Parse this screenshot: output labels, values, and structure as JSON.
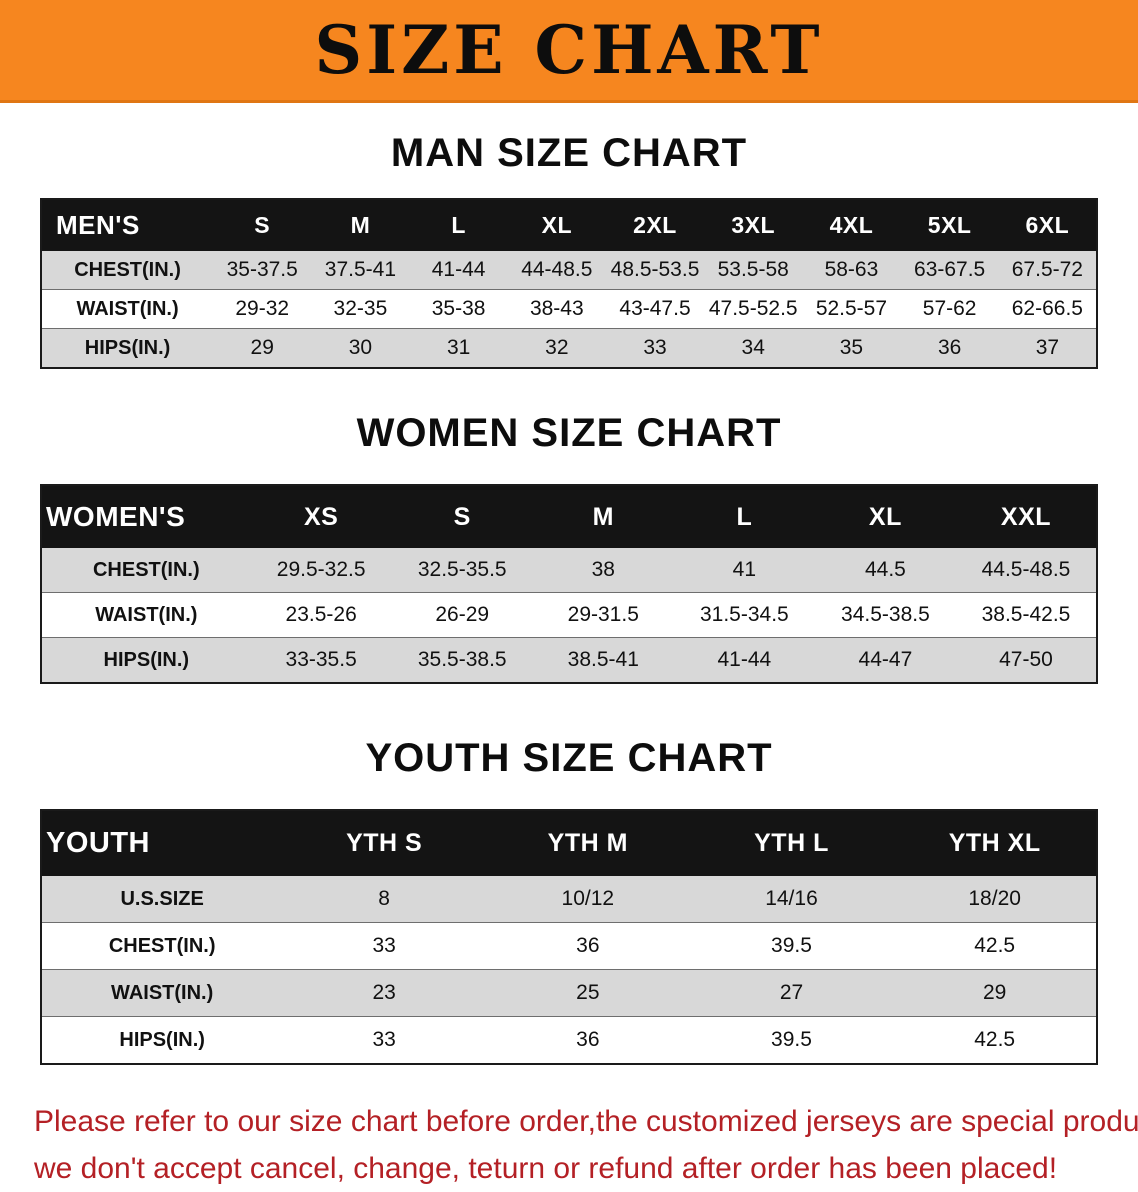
{
  "banner": {
    "title": "SIZE CHART"
  },
  "sections": [
    {
      "heading": "MAN SIZE CHART",
      "table": {
        "header": [
          "MEN'S",
          "S",
          "M",
          "L",
          "XL",
          "2XL",
          "3XL",
          "4XL",
          "5XL",
          "6XL"
        ],
        "rows": [
          [
            "CHEST(IN.)",
            "35-37.5",
            "37.5-41",
            "41-44",
            "44-48.5",
            "48.5-53.5",
            "53.5-58",
            "58-63",
            "63-67.5",
            "67.5-72"
          ],
          [
            "WAIST(IN.)",
            "29-32",
            "32-35",
            "35-38",
            "38-43",
            "43-47.5",
            "47.5-52.5",
            "52.5-57",
            "57-62",
            "62-66.5"
          ],
          [
            "HIPS(IN.)",
            "29",
            "30",
            "31",
            "32",
            "33",
            "34",
            "35",
            "36",
            "37"
          ]
        ]
      }
    },
    {
      "heading": "WOMEN SIZE CHART",
      "table": {
        "header": [
          "WOMEN'S",
          "XS",
          "S",
          "M",
          "L",
          "XL",
          "XXL"
        ],
        "rows": [
          [
            "CHEST(IN.)",
            "29.5-32.5",
            "32.5-35.5",
            "38",
            "41",
            "44.5",
            "44.5-48.5"
          ],
          [
            "WAIST(IN.)",
            "23.5-26",
            "26-29",
            "29-31.5",
            "31.5-34.5",
            "34.5-38.5",
            "38.5-42.5"
          ],
          [
            "HIPS(IN.)",
            "33-35.5",
            "35.5-38.5",
            "38.5-41",
            "41-44",
            "44-47",
            "47-50"
          ]
        ]
      }
    },
    {
      "heading": "YOUTH SIZE CHART",
      "table": {
        "header": [
          "YOUTH",
          "YTH S",
          "YTH M",
          "YTH L",
          "YTH XL"
        ],
        "rows": [
          [
            "U.S.SIZE",
            "8",
            "10/12",
            "14/16",
            "18/20"
          ],
          [
            "CHEST(IN.)",
            "33",
            "36",
            "39.5",
            "42.5"
          ],
          [
            "WAIST(IN.)",
            "23",
            "25",
            "27",
            "29"
          ],
          [
            "HIPS(IN.)",
            "33",
            "36",
            "39.5",
            "42.5"
          ]
        ]
      }
    }
  ],
  "disclaimer": {
    "line1": "Please refer to our size chart before order,the customized jerseys are special products,",
    "line2": "we don't accept cancel, change, teturn or refund after order has been placed!"
  },
  "colors": {
    "banner_bg": "#F6861F",
    "table_header_bg": "#141414",
    "row_alt_bg": "#D8D8D8",
    "disclaimer_text": "#B42025"
  }
}
